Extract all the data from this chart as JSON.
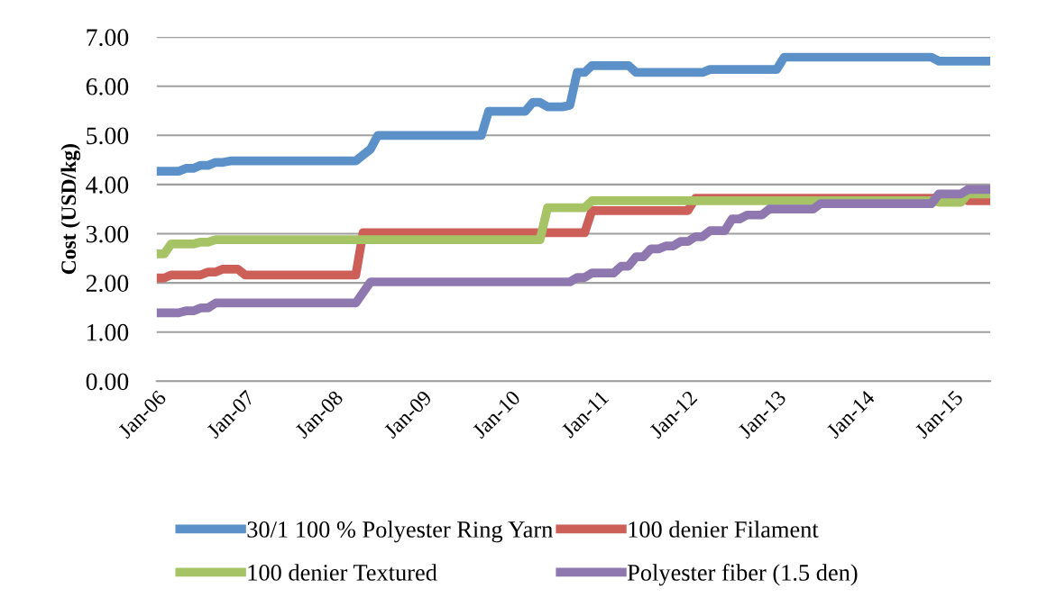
{
  "chart_data": {
    "type": "line",
    "ylabel": "Cost (USD/kg)",
    "xlim": [
      "2006-01",
      "2015-06"
    ],
    "xticks": [
      {
        "value": "2006-01",
        "label": "Jan-06"
      },
      {
        "value": "2007-01",
        "label": "Jan-07"
      },
      {
        "value": "2008-01",
        "label": "Jan-08"
      },
      {
        "value": "2009-01",
        "label": "Jan-09"
      },
      {
        "value": "2010-01",
        "label": "Jan-10"
      },
      {
        "value": "2011-01",
        "label": "Jan-11"
      },
      {
        "value": "2012-01",
        "label": "Jan-12"
      },
      {
        "value": "2013-01",
        "label": "Jan-13"
      },
      {
        "value": "2014-01",
        "label": "Jan-14"
      },
      {
        "value": "2015-01",
        "label": "Jan-15"
      }
    ],
    "ylim": [
      0,
      7
    ],
    "yticks": [
      {
        "value": 0,
        "label": "0.00"
      },
      {
        "value": 1,
        "label": "1.00"
      },
      {
        "value": 2,
        "label": "2.00"
      },
      {
        "value": 3,
        "label": "3.00"
      },
      {
        "value": 4,
        "label": "4.00"
      },
      {
        "value": 5,
        "label": "5.00"
      },
      {
        "value": 6,
        "label": "6.00"
      },
      {
        "value": 7,
        "label": "7.00"
      }
    ],
    "grid": "y",
    "legend": "bottom",
    "marker": "none",
    "line_style": "solid",
    "series": [
      {
        "name": "30/1 100 % Polyester Ring Yarn",
        "color": "#5b91c8",
        "x": [
          "2006-01",
          "2006-04",
          "2006-05",
          "2006-06",
          "2006-07",
          "2006-08",
          "2006-09",
          "2006-10",
          "2006-11",
          "2008-04",
          "2008-05",
          "2008-06",
          "2008-07",
          "2009-09",
          "2009-10",
          "2010-03",
          "2010-04",
          "2010-05",
          "2010-06",
          "2010-08",
          "2010-09",
          "2010-10",
          "2010-11",
          "2010-12",
          "2011-05",
          "2011-06",
          "2012-03",
          "2012-04",
          "2013-01",
          "2013-02",
          "2014-10",
          "2014-11",
          "2015-06"
        ],
        "values": [
          4.27,
          4.27,
          4.33,
          4.33,
          4.39,
          4.39,
          4.45,
          4.45,
          4.48,
          4.48,
          4.6,
          4.72,
          5.0,
          5.0,
          5.49,
          5.49,
          5.67,
          5.67,
          5.58,
          5.58,
          5.61,
          6.28,
          6.28,
          6.42,
          6.42,
          6.28,
          6.28,
          6.34,
          6.34,
          6.59,
          6.59,
          6.51,
          6.51
        ]
      },
      {
        "name": "100 denier Filament",
        "color": "#cc6058",
        "x": [
          "2006-01",
          "2006-02",
          "2006-03",
          "2006-07",
          "2006-08",
          "2006-09",
          "2006-10",
          "2006-12",
          "2007-01",
          "2008-04",
          "2008-05",
          "2010-11",
          "2010-12",
          "2012-01",
          "2012-02",
          "2015-02",
          "2015-03",
          "2015-06"
        ],
        "values": [
          2.1,
          2.1,
          2.16,
          2.16,
          2.22,
          2.22,
          2.28,
          2.28,
          2.16,
          2.16,
          3.02,
          3.02,
          3.47,
          3.47,
          3.72,
          3.72,
          3.67,
          3.67
        ]
      },
      {
        "name": "100 denier Textured",
        "color": "#a6c366",
        "x": [
          "2006-01",
          "2006-02",
          "2006-03",
          "2006-06",
          "2006-07",
          "2006-08",
          "2006-09",
          "2010-05",
          "2010-06",
          "2010-11",
          "2010-12",
          "2014-10",
          "2014-11",
          "2015-02",
          "2015-03",
          "2015-06"
        ],
        "values": [
          2.59,
          2.59,
          2.79,
          2.79,
          2.83,
          2.83,
          2.88,
          2.88,
          3.53,
          3.53,
          3.67,
          3.67,
          3.64,
          3.64,
          3.81,
          3.81
        ]
      },
      {
        "name": "Polyester fiber (1.5 den)",
        "color": "#8f77af",
        "x": [
          "2006-01",
          "2006-04",
          "2006-05",
          "2006-06",
          "2006-07",
          "2006-08",
          "2006-09",
          "2008-04",
          "2008-06",
          "2010-09",
          "2010-10",
          "2010-11",
          "2010-12",
          "2011-03",
          "2011-04",
          "2011-05",
          "2011-06",
          "2011-07",
          "2011-08",
          "2011-09",
          "2011-10",
          "2011-11",
          "2011-12",
          "2012-01",
          "2012-02",
          "2012-03",
          "2012-04",
          "2012-06",
          "2012-07",
          "2012-08",
          "2012-09",
          "2012-11",
          "2012-12",
          "2013-06",
          "2013-07",
          "2014-10",
          "2014-11",
          "2015-02",
          "2015-03",
          "2015-06"
        ],
        "values": [
          1.39,
          1.39,
          1.43,
          1.43,
          1.49,
          1.49,
          1.59,
          1.59,
          2.02,
          2.02,
          2.11,
          2.11,
          2.2,
          2.2,
          2.34,
          2.34,
          2.53,
          2.53,
          2.69,
          2.69,
          2.75,
          2.75,
          2.84,
          2.84,
          2.94,
          2.94,
          3.06,
          3.06,
          3.3,
          3.3,
          3.38,
          3.38,
          3.5,
          3.5,
          3.61,
          3.61,
          3.81,
          3.81,
          3.9,
          3.9
        ]
      }
    ]
  }
}
